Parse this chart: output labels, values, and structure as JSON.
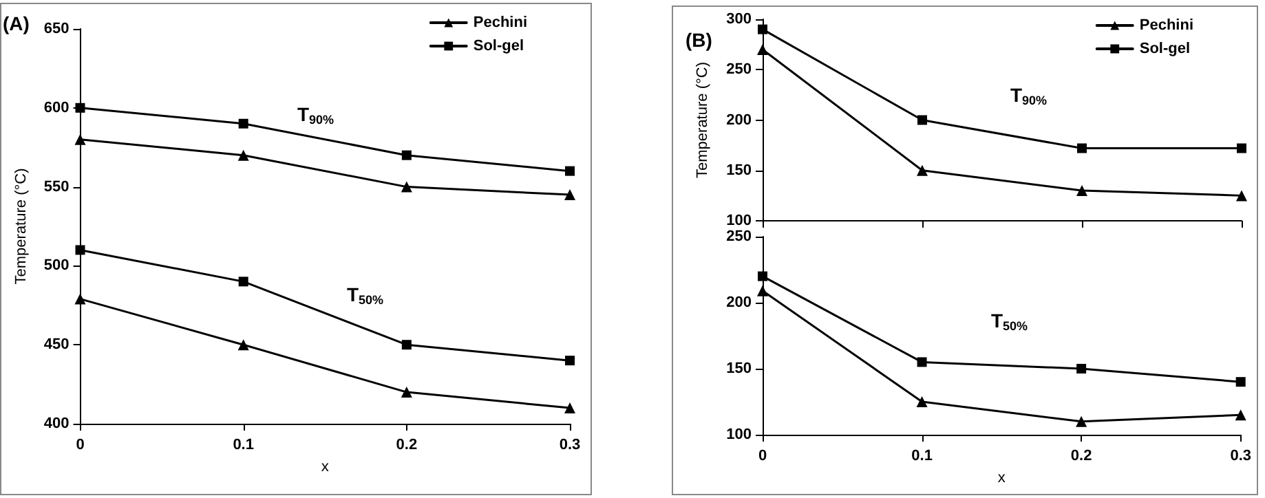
{
  "chart_data": [
    {
      "type": "line",
      "xlabel": "x",
      "ylabel": "Temperature (°C)",
      "x": [
        0,
        0.1,
        0.2,
        0.3
      ],
      "xlim": [
        0,
        0.3
      ],
      "xticks": [
        0,
        0.1,
        0.2,
        0.3
      ],
      "ylim": [
        400,
        650
      ],
      "yticks": [
        400,
        450,
        500,
        550,
        600,
        650
      ],
      "grid": false,
      "legend": "top right",
      "annotations": [
        "(A)",
        "T$_{90%}$",
        "T$_{50%}$"
      ],
      "series": [
        {
          "name": "Pechini",
          "color": "#000000",
          "marker": "triangle",
          "values": [
            580,
            570,
            550,
            545
          ]
        },
        {
          "name": "Sol-gel",
          "color": "#000000",
          "marker": "square",
          "values": [
            600,
            590,
            570,
            560
          ]
        },
        {
          "color": "#000000",
          "marker": "square",
          "values": [
            510,
            490,
            450,
            440
          ]
        },
        {
          "color": "#000000",
          "marker": "triangle",
          "values": [
            479,
            450,
            420,
            410
          ]
        }
      ]
    },
    {
      "type": "line",
      "ylabel": "Temperature (°C)",
      "x": [
        0,
        0.1,
        0.2,
        0.3
      ],
      "xlim": [
        0,
        0.3
      ],
      "xticks": [
        0,
        0.1,
        0.2,
        0.3
      ],
      "ylim": [
        100,
        300
      ],
      "yticks": [
        100,
        150,
        200,
        250,
        300
      ],
      "grid": false,
      "legend": "top right",
      "tick_labels": "y",
      "annotations": [
        "(B)",
        "T$_{90%}$"
      ],
      "series": [
        {
          "name": "Pechini",
          "color": "#000000",
          "marker": "triangle",
          "values": [
            270,
            150,
            130,
            125
          ]
        },
        {
          "name": "Sol-gel",
          "color": "#000000",
          "marker": "square",
          "values": [
            290,
            200,
            172,
            172
          ]
        }
      ]
    },
    {
      "type": "line",
      "xlabel": "x",
      "x": [
        0,
        0.1,
        0.2,
        0.3
      ],
      "xlim": [
        0,
        0.3
      ],
      "xticks": [
        0,
        0.1,
        0.2,
        0.3
      ],
      "ylim": [
        100,
        250
      ],
      "yticks": [
        100,
        150,
        200,
        250
      ],
      "grid": false,
      "annotations": [
        "T$_{50%}$"
      ],
      "series": [
        {
          "color": "#000000",
          "marker": "triangle",
          "values": [
            209,
            125,
            110,
            115
          ]
        },
        {
          "color": "#000000",
          "marker": "square",
          "values": [
            220,
            155,
            150,
            140
          ]
        }
      ]
    }
  ]
}
